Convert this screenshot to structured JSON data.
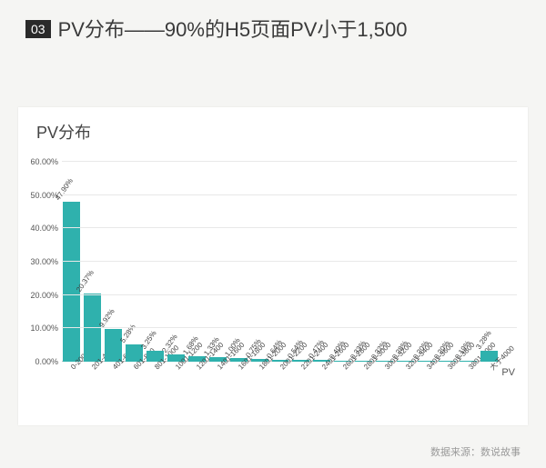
{
  "heading": {
    "badge": "03",
    "text": "PV分布——90%的H5页面PV小于1,500"
  },
  "chart": {
    "type": "bar",
    "title": "PV分布",
    "bar_color": "#2fb1ad",
    "background_color": "#ffffff",
    "grid_color": "#e8e8e8",
    "title_fontsize": 18,
    "label_fontsize": 9,
    "value_fontsize": 8,
    "ylim": [
      0,
      60
    ],
    "ytick_step": 10,
    "y_suffix": "%",
    "y_ticks": [
      "0.00%",
      "10.00%",
      "20.00%",
      "30.00%",
      "40.00%",
      "50.00%",
      "60.00%"
    ],
    "x_axis_title": "PV",
    "categories": [
      "0-200",
      "201-400",
      "401-600",
      "601-800",
      "801-1000",
      "1001-1200",
      "1201-1400",
      "1401-1600",
      "1601-1800",
      "1801-2000",
      "2001-2200",
      "2201-2400",
      "2401-2600",
      "2601-2800",
      "2801-3000",
      "3001-3200",
      "3201-3400",
      "3401-3600",
      "3601-3800",
      "3801-4000",
      "大于4000"
    ],
    "values": [
      47.9,
      20.37,
      9.92,
      5.28,
      3.25,
      2.32,
      1.68,
      1.33,
      1.0,
      0.75,
      0.64,
      0.54,
      0.47,
      0.4,
      0.33,
      0.32,
      0.28,
      0.2,
      0.2,
      0.19,
      3.28
    ],
    "value_labels": [
      "47.90%",
      "20.37%",
      "9.92%",
      "5.28%",
      "3.25%",
      "2.32%",
      "1.68%",
      "1.33%",
      "1.00%",
      "0.75%",
      "0.64%",
      "0.54%",
      "0.47%",
      "0.40%",
      "0.33%",
      "0.32%",
      "0.28%",
      "0.20%",
      "0.20%",
      "0.19%",
      "3.28%"
    ]
  },
  "source_label": "数据来源：数说故事"
}
